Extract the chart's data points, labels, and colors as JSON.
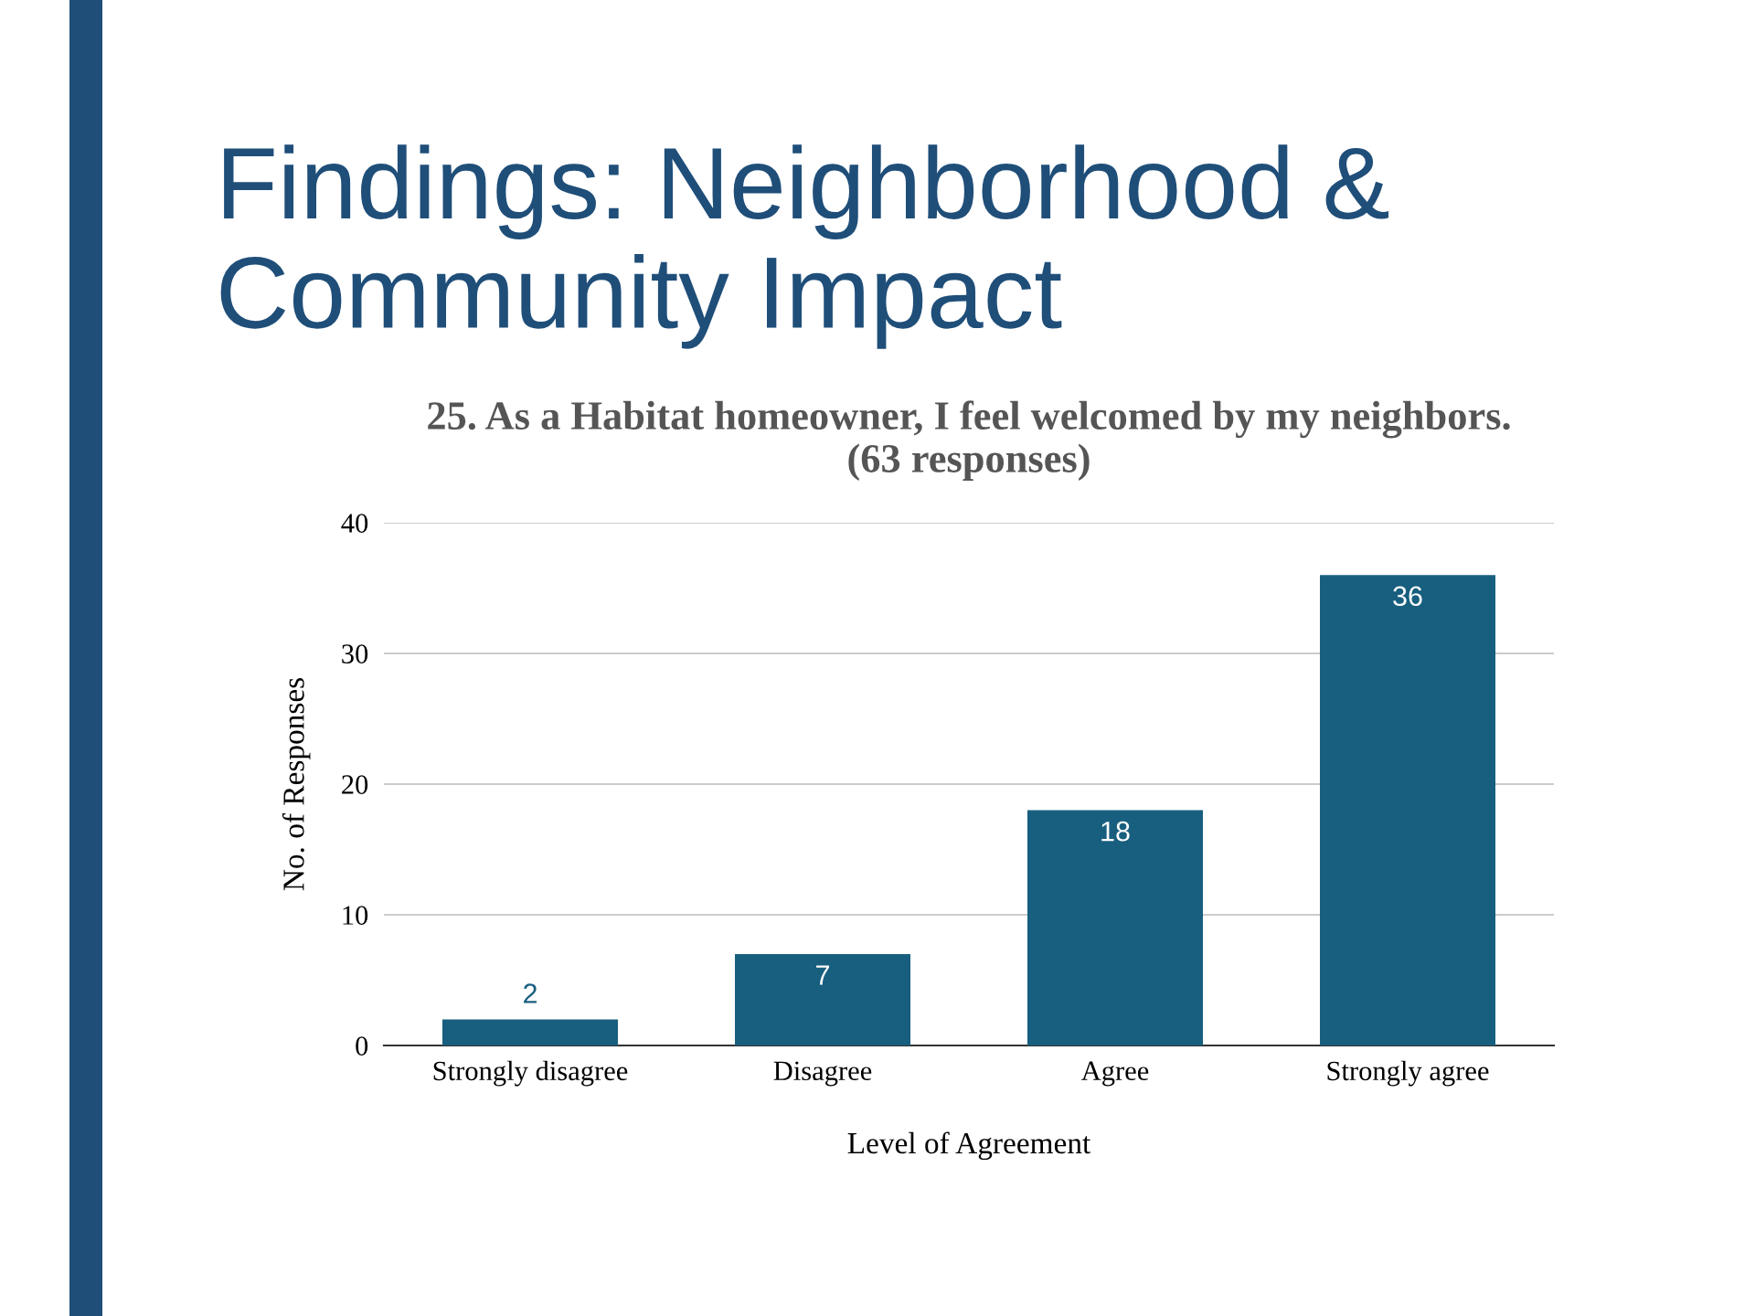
{
  "chart_data": {
    "type": "bar",
    "title": "Findings: Neighborhood & Community Impact",
    "subtitle": "25. As a Habitat homeowner, I feel welcomed by my neighbors.\n(63 responses)",
    "xlabel": "Level of Agreement",
    "ylabel": "No. of Responses",
    "categories": [
      "Strongly disagree",
      "Disagree",
      "Agree",
      "Strongly agree"
    ],
    "values": [
      2,
      7,
      18,
      36
    ],
    "color": "#185f7f",
    "ylim": [
      0,
      40
    ],
    "yticks": [
      0,
      10,
      20,
      30,
      40
    ],
    "grid": "y",
    "data_labels": true,
    "legend": false
  }
}
